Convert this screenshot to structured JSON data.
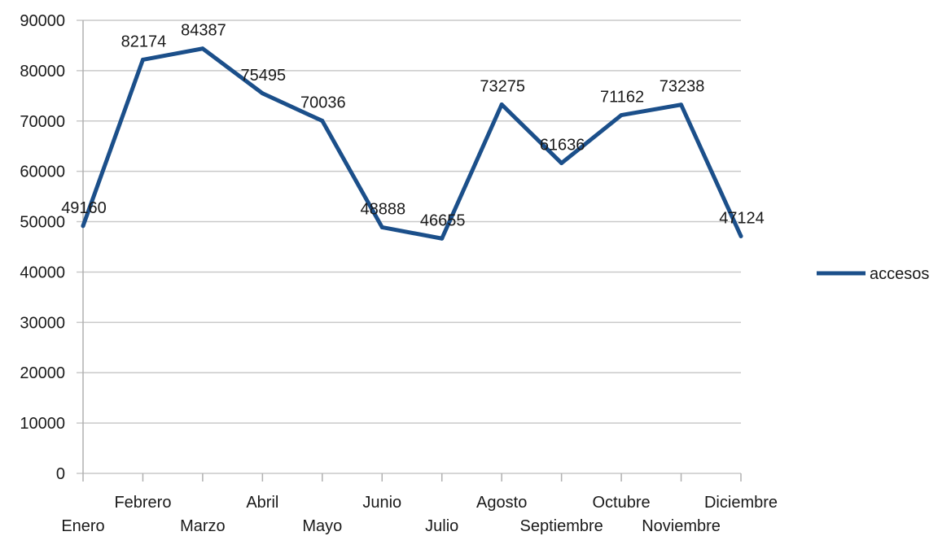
{
  "chart_data": {
    "type": "line",
    "categories": [
      "Enero",
      "Febrero",
      "Marzo",
      "Abril",
      "Mayo",
      "Junio",
      "Julio",
      "Agosto",
      "Septiembre",
      "Octubre",
      "Noviembre",
      "Diciembre"
    ],
    "series": [
      {
        "name": "accesos",
        "values": [
          49160,
          82174,
          84387,
          75495,
          70036,
          48888,
          46655,
          73275,
          61636,
          71162,
          73238,
          47124
        ],
        "color": "#1b4f8a"
      }
    ],
    "title": "",
    "xlabel": "",
    "ylabel": "",
    "ylim": [
      0,
      90000
    ],
    "yticks": [
      0,
      10000,
      20000,
      30000,
      40000,
      50000,
      60000,
      70000,
      80000,
      90000
    ],
    "grid": true,
    "legend": "right",
    "data_labels": true
  },
  "colors": {
    "line": "#1b4f8a",
    "grid": "#c9c9c9",
    "axis": "#b0b0b0"
  }
}
